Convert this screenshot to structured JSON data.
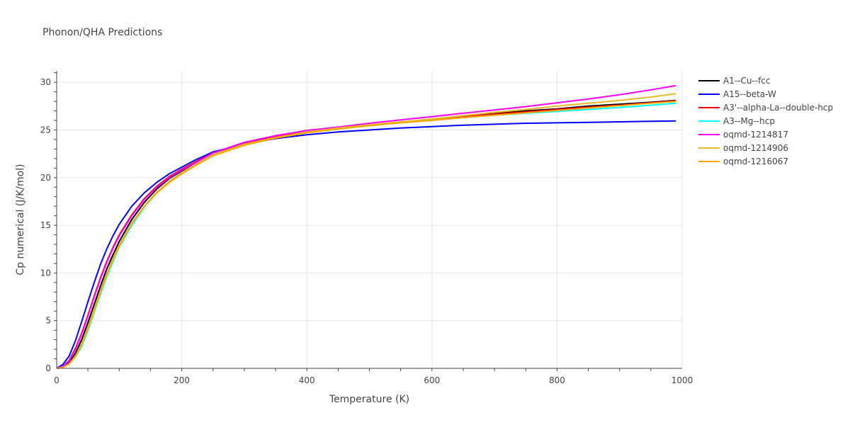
{
  "chart_data": {
    "type": "line",
    "title": "Phonon/QHA Predictions",
    "xlabel": "Temperature (K)",
    "ylabel": "Cp numerical (J/K/mol)",
    "xlim": [
      0,
      1000
    ],
    "ylim": [
      0,
      31.2
    ],
    "x_ticks": [
      0,
      200,
      400,
      600,
      800,
      1000
    ],
    "y_ticks": [
      0,
      5,
      10,
      15,
      20,
      25,
      30
    ],
    "grid": true,
    "legend_position": "right",
    "series": [
      {
        "name": "A1--Cu--fcc",
        "color": "#000000",
        "x": [
          0,
          10,
          20,
          30,
          40,
          50,
          60,
          70,
          80,
          90,
          100,
          120,
          140,
          160,
          180,
          200,
          220,
          250,
          300,
          350,
          400,
          450,
          500,
          550,
          600,
          650,
          700,
          750,
          800,
          850,
          900,
          950,
          990
        ],
        "y": [
          0,
          0.15,
          0.6,
          1.6,
          3.0,
          4.8,
          6.7,
          8.6,
          10.4,
          11.9,
          13.3,
          15.6,
          17.4,
          18.8,
          19.9,
          20.7,
          21.5,
          22.6,
          23.6,
          24.3,
          24.8,
          25.2,
          25.5,
          25.8,
          26.1,
          26.4,
          26.7,
          27.0,
          27.2,
          27.5,
          27.7,
          27.9,
          28.1
        ]
      },
      {
        "name": "A15--beta-W",
        "color": "#0000ff",
        "x": [
          0,
          10,
          20,
          30,
          40,
          50,
          60,
          70,
          80,
          90,
          100,
          120,
          140,
          160,
          180,
          200,
          220,
          250,
          300,
          350,
          400,
          450,
          500,
          550,
          600,
          650,
          700,
          750,
          800,
          850,
          900,
          950,
          990
        ],
        "y": [
          0,
          0.4,
          1.3,
          2.9,
          4.9,
          7.0,
          9.0,
          10.9,
          12.5,
          13.9,
          15.1,
          17.0,
          18.4,
          19.5,
          20.4,
          21.1,
          21.8,
          22.7,
          23.5,
          24.1,
          24.5,
          24.8,
          25.0,
          25.2,
          25.35,
          25.5,
          25.6,
          25.7,
          25.75,
          25.8,
          25.85,
          25.9,
          25.95
        ]
      },
      {
        "name": "A3'--alpha-La--double-hcp",
        "color": "#ff0000",
        "x": [
          0,
          10,
          20,
          30,
          40,
          50,
          60,
          70,
          80,
          90,
          100,
          120,
          140,
          160,
          180,
          200,
          220,
          250,
          300,
          350,
          400,
          450,
          500,
          550,
          600,
          650,
          700,
          750,
          800,
          850,
          900,
          950,
          990
        ],
        "y": [
          0,
          0.2,
          0.85,
          2.1,
          3.7,
          5.6,
          7.6,
          9.5,
          11.2,
          12.7,
          14.0,
          16.1,
          17.8,
          19.1,
          20.1,
          20.9,
          21.6,
          22.6,
          23.6,
          24.3,
          24.8,
          25.2,
          25.5,
          25.8,
          26.1,
          26.4,
          26.65,
          26.9,
          27.15,
          27.4,
          27.6,
          27.85,
          28.05
        ]
      },
      {
        "name": "A3--Mg--hcp",
        "color": "#00ffff",
        "x": [
          0,
          10,
          20,
          30,
          40,
          50,
          60,
          70,
          80,
          90,
          100,
          120,
          140,
          160,
          180,
          200,
          220,
          250,
          300,
          350,
          400,
          450,
          500,
          550,
          600,
          650,
          700,
          750,
          800,
          850,
          900,
          950,
          990
        ],
        "y": [
          0,
          0.1,
          0.45,
          1.2,
          2.3,
          4.0,
          5.9,
          7.8,
          9.6,
          11.2,
          12.7,
          15.0,
          16.9,
          18.4,
          19.6,
          20.5,
          21.3,
          22.4,
          23.5,
          24.2,
          24.7,
          25.1,
          25.45,
          25.75,
          26.0,
          26.3,
          26.55,
          26.75,
          26.95,
          27.15,
          27.35,
          27.6,
          27.8
        ]
      },
      {
        "name": "oqmd-1214817",
        "color": "#ff00ff",
        "x": [
          0,
          10,
          20,
          30,
          40,
          50,
          60,
          70,
          80,
          90,
          100,
          120,
          140,
          160,
          180,
          200,
          220,
          250,
          300,
          350,
          400,
          450,
          500,
          550,
          600,
          650,
          700,
          750,
          800,
          850,
          900,
          950,
          990
        ],
        "y": [
          0,
          0.2,
          0.8,
          2.0,
          3.6,
          5.5,
          7.5,
          9.4,
          11.1,
          12.6,
          13.9,
          16.0,
          17.7,
          19.0,
          20.0,
          20.8,
          21.5,
          22.6,
          23.7,
          24.4,
          24.95,
          25.3,
          25.7,
          26.05,
          26.4,
          26.75,
          27.1,
          27.45,
          27.85,
          28.25,
          28.7,
          29.2,
          29.65
        ]
      },
      {
        "name": "oqmd-1214906",
        "color": "#e8b92a",
        "x": [
          0,
          10,
          20,
          30,
          40,
          50,
          60,
          70,
          80,
          90,
          100,
          120,
          140,
          160,
          180,
          200,
          220,
          250,
          300,
          350,
          400,
          450,
          500,
          550,
          600,
          650,
          700,
          750,
          800,
          850,
          900,
          950,
          990
        ],
        "y": [
          0,
          0.1,
          0.45,
          1.25,
          2.5,
          4.2,
          6.1,
          8.0,
          9.8,
          11.4,
          12.8,
          15.2,
          17.0,
          18.5,
          19.6,
          20.5,
          21.3,
          22.4,
          23.5,
          24.2,
          24.8,
          25.2,
          25.55,
          25.85,
          26.15,
          26.5,
          26.85,
          27.15,
          27.5,
          27.8,
          28.1,
          28.45,
          28.8
        ]
      },
      {
        "name": "oqmd-1216067",
        "color": "#ffa500",
        "x": [
          0,
          10,
          20,
          30,
          40,
          50,
          60,
          70,
          80,
          90,
          100,
          120,
          140,
          160,
          180,
          200,
          220,
          250,
          300,
          350,
          400,
          450,
          500,
          550,
          600,
          650,
          700,
          750,
          800,
          850,
          900,
          950,
          990
        ],
        "y": [
          0,
          0.1,
          0.5,
          1.3,
          2.6,
          4.3,
          6.2,
          8.1,
          9.9,
          11.5,
          12.9,
          15.2,
          17.0,
          18.4,
          19.5,
          20.4,
          21.2,
          22.3,
          23.4,
          24.15,
          24.7,
          25.1,
          25.45,
          25.75,
          26.0,
          26.3,
          26.55,
          26.8,
          27.05,
          27.3,
          27.55,
          27.8,
          28.0
        ]
      }
    ]
  }
}
